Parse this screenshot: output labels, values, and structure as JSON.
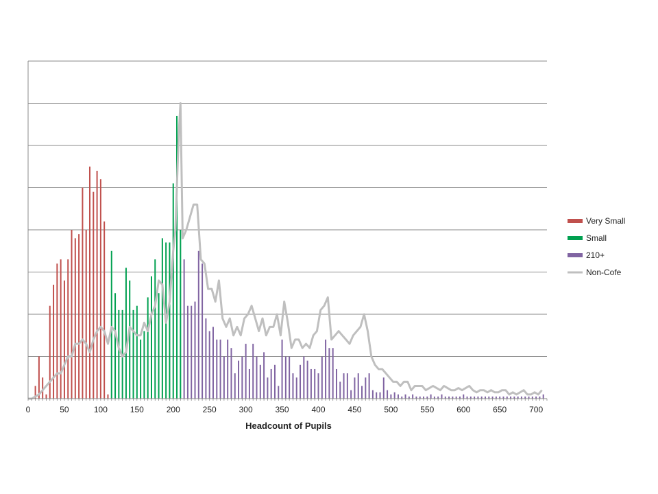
{
  "chart_data": {
    "type": "bar",
    "title": "",
    "xlabel": "Headcount of Pupils",
    "ylabel": "",
    "xlim": [
      0,
      715
    ],
    "ylim": [
      0,
      8
    ],
    "grid": true,
    "legend_position": "right",
    "x_ticks": [
      0,
      50,
      100,
      150,
      200,
      250,
      300,
      350,
      400,
      450,
      500,
      550,
      600,
      650,
      700
    ],
    "series": [
      {
        "name": "Very Small",
        "kind": "bar",
        "color": "#c0504d",
        "x": [
          10,
          15,
          20,
          25,
          30,
          35,
          40,
          45,
          50,
          55,
          60,
          65,
          70,
          75,
          80,
          85,
          90,
          95,
          100,
          105,
          110
        ],
        "values": [
          0.3,
          1.0,
          0.5,
          0.1,
          2.2,
          2.7,
          3.2,
          3.3,
          2.8,
          3.3,
          4.0,
          3.8,
          3.9,
          5.0,
          4.0,
          5.5,
          4.9,
          5.4,
          5.2,
          4.2,
          0.1
        ]
      },
      {
        "name": "Small",
        "kind": "bar",
        "color": "#00a050",
        "x": [
          115,
          120,
          125,
          130,
          135,
          140,
          145,
          150,
          155,
          160,
          165,
          170,
          175,
          180,
          185,
          190,
          195,
          200,
          205,
          210
        ],
        "values": [
          3.5,
          2.5,
          2.1,
          2.1,
          3.1,
          2.8,
          2.1,
          2.2,
          1.4,
          1.6,
          2.4,
          2.9,
          3.3,
          2.5,
          3.8,
          3.7,
          3.7,
          5.1,
          6.7,
          4.0
        ]
      },
      {
        "name": "210+",
        "kind": "bar",
        "color": "#8064a2",
        "x": [
          215,
          220,
          225,
          230,
          235,
          240,
          245,
          250,
          255,
          260,
          265,
          270,
          275,
          280,
          285,
          290,
          295,
          300,
          305,
          310,
          315,
          320,
          325,
          330,
          335,
          340,
          345,
          350,
          355,
          360,
          365,
          370,
          375,
          380,
          385,
          390,
          395,
          400,
          405,
          410,
          415,
          420,
          425,
          430,
          435,
          440,
          445,
          450,
          455,
          460,
          465,
          470,
          475,
          480,
          485,
          490,
          495,
          500,
          505,
          510,
          515,
          520,
          525,
          530,
          535,
          540,
          545,
          550,
          555,
          560,
          565,
          570,
          575,
          580,
          585,
          590,
          595,
          600,
          605,
          610,
          615,
          620,
          625,
          630,
          635,
          640,
          645,
          650,
          655,
          660,
          665,
          670,
          675,
          680,
          685,
          690,
          695,
          700,
          705,
          710
        ],
        "values": [
          3.3,
          2.2,
          2.2,
          2.3,
          3.5,
          3.2,
          1.9,
          1.6,
          1.7,
          1.4,
          1.4,
          1.0,
          1.4,
          1.2,
          0.6,
          0.9,
          1.0,
          1.3,
          0.7,
          1.3,
          1.0,
          0.8,
          1.1,
          0.5,
          0.7,
          0.8,
          0.3,
          1.4,
          1.0,
          1.0,
          0.6,
          0.5,
          0.8,
          1.0,
          0.9,
          0.7,
          0.7,
          0.6,
          1.0,
          1.4,
          1.2,
          1.2,
          0.7,
          0.4,
          0.6,
          0.6,
          0.2,
          0.5,
          0.6,
          0.3,
          0.5,
          0.6,
          0.2,
          0.15,
          0.15,
          0.5,
          0.2,
          0.1,
          0.15,
          0.1,
          0.05,
          0.1,
          0.05,
          0.1,
          0.05,
          0.05,
          0.05,
          0.05,
          0.1,
          0.05,
          0.05,
          0.1,
          0.05,
          0.05,
          0.05,
          0.05,
          0.05,
          0.1,
          0.05,
          0.05,
          0.05,
          0.05,
          0.05,
          0.05,
          0.05,
          0.05,
          0.05,
          0.05,
          0.05,
          0.05,
          0.05,
          0.05,
          0.05,
          0.05,
          0.05,
          0.05,
          0.05,
          0.05,
          0.05,
          0.1
        ]
      },
      {
        "name": "Non-Cofe",
        "kind": "line",
        "color": "#bfbfbf",
        "x": [
          0,
          5,
          10,
          15,
          20,
          25,
          30,
          35,
          40,
          45,
          50,
          55,
          60,
          65,
          70,
          75,
          80,
          85,
          90,
          95,
          100,
          105,
          110,
          115,
          120,
          125,
          130,
          135,
          140,
          145,
          150,
          155,
          160,
          165,
          170,
          175,
          180,
          185,
          190,
          195,
          200,
          203,
          206,
          208,
          210,
          213,
          218,
          223,
          228,
          233,
          238,
          243,
          248,
          253,
          258,
          263,
          268,
          273,
          278,
          283,
          288,
          293,
          298,
          303,
          308,
          313,
          318,
          323,
          328,
          333,
          338,
          343,
          348,
          353,
          358,
          363,
          368,
          373,
          378,
          383,
          388,
          393,
          398,
          403,
          408,
          413,
          418,
          423,
          428,
          433,
          438,
          443,
          448,
          453,
          458,
          463,
          468,
          473,
          478,
          483,
          488,
          493,
          498,
          503,
          508,
          513,
          518,
          523,
          528,
          533,
          538,
          543,
          548,
          553,
          558,
          563,
          568,
          573,
          578,
          583,
          588,
          593,
          598,
          603,
          608,
          613,
          618,
          623,
          628,
          633,
          638,
          643,
          648,
          653,
          658,
          663,
          668,
          673,
          678,
          683,
          688,
          693,
          698,
          703,
          708
        ],
        "values": [
          0.0,
          0.0,
          0.05,
          0.1,
          0.2,
          0.3,
          0.4,
          0.5,
          0.6,
          0.6,
          0.8,
          1.0,
          1.0,
          1.3,
          1.3,
          1.4,
          1.3,
          1.1,
          1.4,
          1.6,
          1.7,
          1.6,
          1.3,
          1.7,
          1.6,
          1.2,
          1.0,
          1.1,
          1.7,
          1.6,
          1.5,
          1.5,
          1.8,
          1.6,
          2.0,
          2.2,
          2.8,
          2.7,
          1.8,
          2.3,
          3.5,
          4.0,
          5.5,
          6.4,
          7.0,
          3.8,
          4.0,
          4.3,
          4.6,
          4.6,
          3.3,
          3.2,
          2.6,
          2.6,
          2.3,
          2.8,
          1.9,
          1.7,
          1.9,
          1.5,
          1.7,
          1.5,
          1.9,
          2.0,
          2.2,
          1.9,
          1.6,
          1.9,
          1.5,
          1.7,
          1.7,
          2.0,
          1.5,
          2.3,
          1.8,
          1.2,
          1.4,
          1.4,
          1.2,
          1.3,
          1.2,
          1.5,
          1.6,
          2.1,
          2.2,
          2.4,
          1.4,
          1.5,
          1.6,
          1.5,
          1.4,
          1.3,
          1.5,
          1.6,
          1.7,
          2.0,
          1.6,
          1.0,
          0.8,
          0.7,
          0.7,
          0.6,
          0.5,
          0.4,
          0.4,
          0.3,
          0.4,
          0.4,
          0.2,
          0.3,
          0.3,
          0.3,
          0.2,
          0.25,
          0.3,
          0.25,
          0.2,
          0.3,
          0.25,
          0.2,
          0.2,
          0.25,
          0.2,
          0.25,
          0.3,
          0.2,
          0.15,
          0.2,
          0.2,
          0.15,
          0.2,
          0.15,
          0.15,
          0.2,
          0.2,
          0.1,
          0.15,
          0.1,
          0.15,
          0.2,
          0.1,
          0.1,
          0.15,
          0.1,
          0.2
        ]
      }
    ]
  }
}
